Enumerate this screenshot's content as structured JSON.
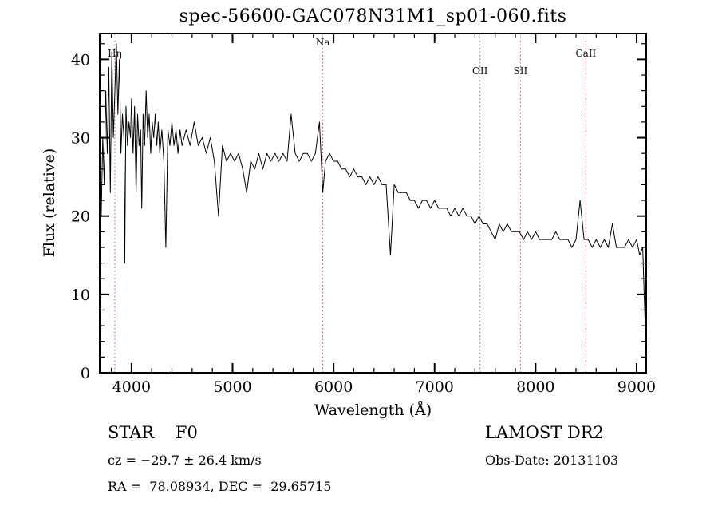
{
  "header": {
    "title": "spec-56600-GAC078N31M1_sp01-060.fits"
  },
  "footer": {
    "classification": "STAR    F0",
    "survey": "LAMOST DR2",
    "cz": "cz = −29.7 ± 26.4 km/s",
    "obs_date": "Obs-Date: 20131103",
    "ra_dec": "RA =  78.08934, DEC =  29.65715"
  },
  "chart_data": {
    "type": "line",
    "title": "spec-56600-GAC078N31M1_sp01-060.fits",
    "xlabel": "Wavelength (Å)",
    "ylabel": "Flux (relative)",
    "xlim": [
      3685,
      9095
    ],
    "ylim": [
      0,
      43.3
    ],
    "xticks": [
      4000,
      5000,
      6000,
      7000,
      8000,
      9000
    ],
    "yticks": [
      0,
      10,
      20,
      30,
      40
    ],
    "xminor": 200,
    "yminor": 2,
    "grid": false,
    "legend": "none",
    "line_color": "#000000",
    "marker_color": "#aa5555",
    "spectral_lines": [
      {
        "label": "Hη",
        "wavelength": 3835,
        "row": 1
      },
      {
        "label": "Na",
        "wavelength": 5893,
        "row": 0
      },
      {
        "label": "OII",
        "wavelength": 7450,
        "row": 2
      },
      {
        "label": "SII",
        "wavelength": 7850,
        "row": 2
      },
      {
        "label": "CaII",
        "wavelength": 8498,
        "row": 1
      }
    ],
    "points": [
      [
        3700,
        20
      ],
      [
        3715,
        30
      ],
      [
        3730,
        24
      ],
      [
        3745,
        36
      ],
      [
        3760,
        28
      ],
      [
        3775,
        39
      ],
      [
        3790,
        23
      ],
      [
        3805,
        41
      ],
      [
        3820,
        30
      ],
      [
        3835,
        36
      ],
      [
        3850,
        42
      ],
      [
        3865,
        33
      ],
      [
        3880,
        40
      ],
      [
        3895,
        28
      ],
      [
        3910,
        33
      ],
      [
        3925,
        30
      ],
      [
        3933,
        14
      ],
      [
        3945,
        34
      ],
      [
        3960,
        29
      ],
      [
        3975,
        32
      ],
      [
        3990,
        30
      ],
      [
        4000,
        35
      ],
      [
        4015,
        28
      ],
      [
        4030,
        34
      ],
      [
        4045,
        23
      ],
      [
        4060,
        33
      ],
      [
        4075,
        29
      ],
      [
        4090,
        31
      ],
      [
        4101,
        21
      ],
      [
        4115,
        33
      ],
      [
        4130,
        29
      ],
      [
        4145,
        36
      ],
      [
        4160,
        30
      ],
      [
        4175,
        33
      ],
      [
        4190,
        28
      ],
      [
        4205,
        32
      ],
      [
        4220,
        30
      ],
      [
        4235,
        33
      ],
      [
        4250,
        29
      ],
      [
        4265,
        32
      ],
      [
        4280,
        28
      ],
      [
        4300,
        31
      ],
      [
        4320,
        27
      ],
      [
        4340,
        16
      ],
      [
        4360,
        31
      ],
      [
        4380,
        29
      ],
      [
        4400,
        32
      ],
      [
        4420,
        29
      ],
      [
        4440,
        31
      ],
      [
        4460,
        28
      ],
      [
        4480,
        31
      ],
      [
        4500,
        29
      ],
      [
        4540,
        31
      ],
      [
        4580,
        29
      ],
      [
        4620,
        32
      ],
      [
        4660,
        29
      ],
      [
        4700,
        30
      ],
      [
        4740,
        28
      ],
      [
        4780,
        30
      ],
      [
        4820,
        27
      ],
      [
        4861,
        20
      ],
      [
        4900,
        29
      ],
      [
        4940,
        27
      ],
      [
        4980,
        28
      ],
      [
        5020,
        27
      ],
      [
        5060,
        28
      ],
      [
        5100,
        26
      ],
      [
        5140,
        23
      ],
      [
        5180,
        27
      ],
      [
        5220,
        26
      ],
      [
        5260,
        28
      ],
      [
        5300,
        26
      ],
      [
        5340,
        28
      ],
      [
        5380,
        27
      ],
      [
        5420,
        28
      ],
      [
        5460,
        27
      ],
      [
        5500,
        28
      ],
      [
        5540,
        27
      ],
      [
        5580,
        33
      ],
      [
        5620,
        28
      ],
      [
        5660,
        27
      ],
      [
        5700,
        28
      ],
      [
        5740,
        28
      ],
      [
        5780,
        27
      ],
      [
        5820,
        28
      ],
      [
        5860,
        32
      ],
      [
        5893,
        23
      ],
      [
        5920,
        27
      ],
      [
        5960,
        28
      ],
      [
        6000,
        27
      ],
      [
        6040,
        27
      ],
      [
        6080,
        26
      ],
      [
        6120,
        26
      ],
      [
        6160,
        25
      ],
      [
        6200,
        26
      ],
      [
        6240,
        25
      ],
      [
        6280,
        25
      ],
      [
        6320,
        24
      ],
      [
        6360,
        25
      ],
      [
        6400,
        24
      ],
      [
        6440,
        25
      ],
      [
        6480,
        24
      ],
      [
        6520,
        24
      ],
      [
        6563,
        15
      ],
      [
        6600,
        24
      ],
      [
        6640,
        23
      ],
      [
        6680,
        23
      ],
      [
        6720,
        23
      ],
      [
        6760,
        22
      ],
      [
        6800,
        22
      ],
      [
        6840,
        21
      ],
      [
        6880,
        22
      ],
      [
        6920,
        22
      ],
      [
        6960,
        21
      ],
      [
        7000,
        22
      ],
      [
        7040,
        21
      ],
      [
        7080,
        21
      ],
      [
        7120,
        21
      ],
      [
        7160,
        20
      ],
      [
        7200,
        21
      ],
      [
        7240,
        20
      ],
      [
        7280,
        21
      ],
      [
        7320,
        20
      ],
      [
        7360,
        20
      ],
      [
        7400,
        19
      ],
      [
        7440,
        20
      ],
      [
        7480,
        19
      ],
      [
        7520,
        19
      ],
      [
        7560,
        18
      ],
      [
        7600,
        17
      ],
      [
        7640,
        19
      ],
      [
        7680,
        18
      ],
      [
        7720,
        19
      ],
      [
        7760,
        18
      ],
      [
        7800,
        18
      ],
      [
        7840,
        18
      ],
      [
        7880,
        17
      ],
      [
        7920,
        18
      ],
      [
        7960,
        17
      ],
      [
        8000,
        18
      ],
      [
        8040,
        17
      ],
      [
        8080,
        17
      ],
      [
        8120,
        17
      ],
      [
        8160,
        17
      ],
      [
        8200,
        18
      ],
      [
        8240,
        17
      ],
      [
        8280,
        17
      ],
      [
        8320,
        17
      ],
      [
        8360,
        16
      ],
      [
        8400,
        17
      ],
      [
        8440,
        22
      ],
      [
        8480,
        17
      ],
      [
        8520,
        17
      ],
      [
        8560,
        16
      ],
      [
        8600,
        17
      ],
      [
        8640,
        16
      ],
      [
        8680,
        17
      ],
      [
        8720,
        16
      ],
      [
        8760,
        19
      ],
      [
        8800,
        16
      ],
      [
        8840,
        16
      ],
      [
        8880,
        16
      ],
      [
        8920,
        17
      ],
      [
        8960,
        16
      ],
      [
        9000,
        17
      ],
      [
        9030,
        15
      ],
      [
        9060,
        16
      ],
      [
        9080,
        8
      ],
      [
        9090,
        4
      ]
    ]
  }
}
